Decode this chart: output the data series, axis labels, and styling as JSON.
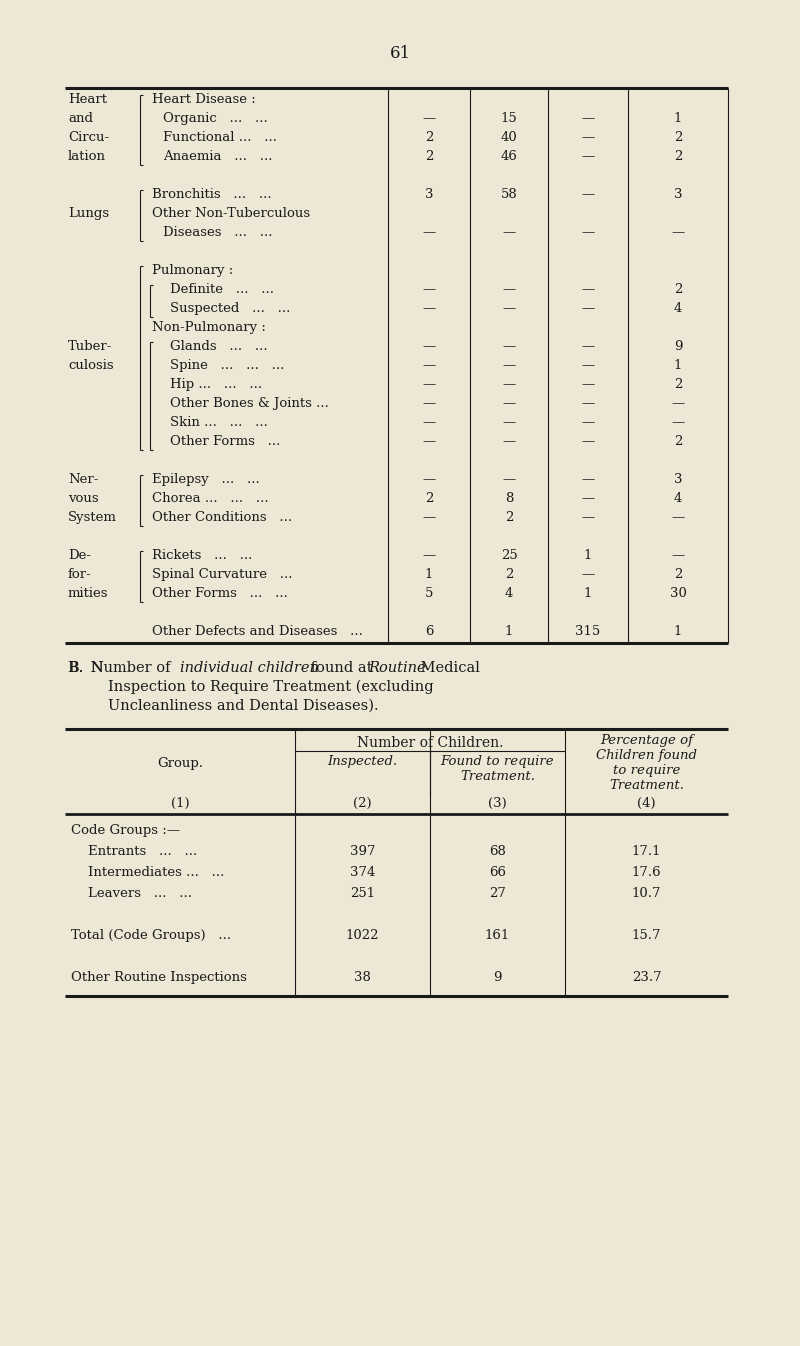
{
  "bg_color": "#ede8d5",
  "page_number": "61",
  "t1_rows": [
    {
      "ll": "Heart",
      "sl": "Heart Disease :",
      "ind": 0,
      "cols": [
        "",
        "",
        "",
        ""
      ]
    },
    {
      "ll": "and",
      "sl": "Organic   ...   ...",
      "ind": 1,
      "cols": [
        "—",
        "15",
        "—",
        "1"
      ]
    },
    {
      "ll": "Circu-",
      "sl": "Functional ...   ...",
      "ind": 1,
      "cols": [
        "2",
        "40",
        "—",
        "2"
      ]
    },
    {
      "ll": "lation",
      "sl": "Anaemia   ...   ...",
      "ind": 1,
      "cols": [
        "2",
        "46",
        "—",
        "2"
      ]
    },
    {
      "ll": "",
      "sl": "",
      "ind": 0,
      "cols": [
        "",
        "",
        "",
        ""
      ]
    },
    {
      "ll": "",
      "sl": "Bronchitis   ...   ...",
      "ind": 0,
      "cols": [
        "3",
        "58",
        "—",
        "3"
      ]
    },
    {
      "ll": "Lungs",
      "sl": "Other Non-Tuberculous",
      "ind": 0,
      "cols": [
        "",
        "",
        "",
        ""
      ]
    },
    {
      "ll": "",
      "sl": "Diseases   ...   ...",
      "ind": 1,
      "cols": [
        "—",
        "—",
        "—",
        "—"
      ]
    },
    {
      "ll": "",
      "sl": "",
      "ind": 0,
      "cols": [
        "",
        "",
        "",
        ""
      ]
    },
    {
      "ll": "",
      "sl": "Pulmonary :",
      "ind": 0,
      "cols": [
        "",
        "",
        "",
        ""
      ]
    },
    {
      "ll": "",
      "sl": "Definite   ...   ...",
      "ind": 2,
      "cols": [
        "—",
        "—",
        "—",
        "2"
      ]
    },
    {
      "ll": "",
      "sl": "Suspected   ...   ...",
      "ind": 2,
      "cols": [
        "—",
        "—",
        "—",
        "4"
      ]
    },
    {
      "ll": "",
      "sl": "Non-Pulmonary :",
      "ind": 0,
      "cols": [
        "",
        "",
        "",
        ""
      ]
    },
    {
      "ll": "Tuber-",
      "sl": "Glands   ...   ...",
      "ind": 2,
      "cols": [
        "—",
        "—",
        "—",
        "9"
      ]
    },
    {
      "ll": "culosis",
      "sl": "Spine   ...   ...   ...",
      "ind": 2,
      "cols": [
        "—",
        "—",
        "—",
        "1"
      ]
    },
    {
      "ll": "",
      "sl": "Hip ...   ...   ...",
      "ind": 2,
      "cols": [
        "—",
        "—",
        "—",
        "2"
      ]
    },
    {
      "ll": "",
      "sl": "Other Bones & Joints ...",
      "ind": 2,
      "cols": [
        "—",
        "—",
        "—",
        "—"
      ]
    },
    {
      "ll": "",
      "sl": "Skin ...   ...   ...",
      "ind": 2,
      "cols": [
        "—",
        "—",
        "—",
        "—"
      ]
    },
    {
      "ll": "",
      "sl": "Other Forms   ...",
      "ind": 2,
      "cols": [
        "—",
        "—",
        "—",
        "2"
      ]
    },
    {
      "ll": "",
      "sl": "",
      "ind": 0,
      "cols": [
        "",
        "",
        "",
        ""
      ]
    },
    {
      "ll": "Ner-",
      "sl": "Epilepsy   ...   ...",
      "ind": 0,
      "cols": [
        "—",
        "—",
        "—",
        "3"
      ]
    },
    {
      "ll": "vous",
      "sl": "Chorea ...   ...   ...",
      "ind": 0,
      "cols": [
        "2",
        "8",
        "—",
        "4"
      ]
    },
    {
      "ll": "System",
      "sl": "Other Conditions   ...",
      "ind": 0,
      "cols": [
        "—",
        "2",
        "—",
        "—"
      ]
    },
    {
      "ll": "",
      "sl": "",
      "ind": 0,
      "cols": [
        "",
        "",
        "",
        ""
      ]
    },
    {
      "ll": "De-",
      "sl": "Rickets   ...   ...",
      "ind": 0,
      "cols": [
        "—",
        "25",
        "1",
        "—"
      ]
    },
    {
      "ll": "for-",
      "sl": "Spinal Curvature   ...",
      "ind": 0,
      "cols": [
        "1",
        "2",
        "—",
        "2"
      ]
    },
    {
      "ll": "mities",
      "sl": "Other Forms   ...   ...",
      "ind": 0,
      "cols": [
        "5",
        "4",
        "1",
        "30"
      ]
    },
    {
      "ll": "",
      "sl": "",
      "ind": 0,
      "cols": [
        "",
        "",
        "",
        ""
      ]
    },
    {
      "ll": "",
      "sl": "Other Defects and Diseases   ...",
      "ind": 0,
      "cols": [
        "6",
        "1",
        "315",
        "1"
      ]
    }
  ],
  "t2_rows": [
    {
      "label": "Code Groups :—",
      "vals": [
        "",
        "",
        ""
      ],
      "subhead": true
    },
    {
      "label": "    Entrants   ...   ...",
      "vals": [
        "397",
        "68",
        "17.1"
      ],
      "subhead": false
    },
    {
      "label": "    Intermediates ...   ...",
      "vals": [
        "374",
        "66",
        "17.6"
      ],
      "subhead": false
    },
    {
      "label": "    Leavers   ...   ...",
      "vals": [
        "251",
        "27",
        "10.7"
      ],
      "subhead": false
    },
    {
      "label": "",
      "vals": [
        "",
        "",
        ""
      ],
      "subhead": false
    },
    {
      "label": "Total (Code Groups)   ...",
      "vals": [
        "1022",
        "161",
        "15.7"
      ],
      "subhead": false
    },
    {
      "label": "",
      "vals": [
        "",
        "",
        ""
      ],
      "subhead": false
    },
    {
      "label": "Other Routine Inspections",
      "vals": [
        "38",
        "9",
        "23.7"
      ],
      "subhead": false
    }
  ]
}
